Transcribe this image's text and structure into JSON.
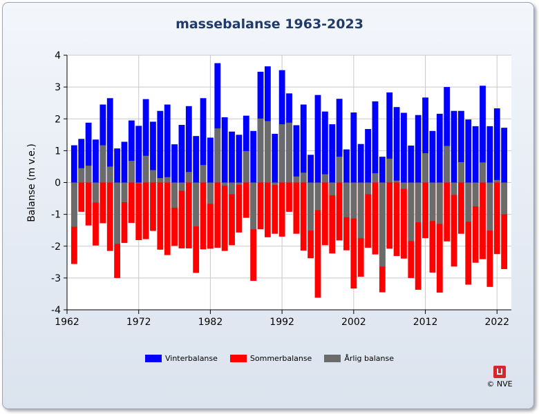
{
  "chart_data": {
    "type": "bar",
    "title": "massebalanse 1963-2023",
    "xlabel": "",
    "ylabel": "Balanse (m v.e.)",
    "ylim": [
      -4,
      4
    ],
    "yticks": [
      -4,
      -3,
      -2,
      -1,
      0,
      1,
      2,
      3,
      4
    ],
    "xlim": [
      1962,
      2024
    ],
    "xticks": [
      1962,
      1972,
      1982,
      1992,
      2002,
      2012,
      2022
    ],
    "grid": true,
    "legend_position": "bottom",
    "x": [
      1963,
      1964,
      1965,
      1966,
      1967,
      1968,
      1969,
      1970,
      1971,
      1972,
      1973,
      1974,
      1975,
      1976,
      1977,
      1978,
      1979,
      1980,
      1981,
      1982,
      1983,
      1984,
      1985,
      1986,
      1987,
      1988,
      1989,
      1990,
      1991,
      1992,
      1993,
      1994,
      1995,
      1996,
      1997,
      1998,
      1999,
      2000,
      2001,
      2002,
      2003,
      2004,
      2005,
      2006,
      2007,
      2008,
      2009,
      2010,
      2011,
      2012,
      2013,
      2014,
      2015,
      2016,
      2017,
      2018,
      2019,
      2020,
      2021,
      2022,
      2023
    ],
    "series": [
      {
        "name": "Vinterbalanse",
        "color": "#0000ff",
        "values": [
          1.17,
          1.37,
          1.88,
          1.35,
          2.45,
          2.65,
          1.07,
          1.28,
          1.95,
          1.78,
          2.62,
          1.91,
          2.25,
          2.45,
          1.2,
          1.81,
          2.4,
          1.46,
          2.65,
          1.41,
          3.75,
          2.05,
          1.6,
          1.5,
          2.1,
          1.62,
          3.48,
          3.65,
          1.53,
          3.53,
          2.8,
          1.8,
          2.45,
          0.87,
          2.75,
          2.23,
          1.83,
          2.63,
          1.04,
          2.2,
          1.21,
          1.68,
          2.55,
          0.81,
          2.83,
          2.37,
          2.19,
          1.16,
          2.12,
          2.67,
          1.62,
          2.16,
          3.0,
          2.25,
          2.25,
          1.98,
          1.77,
          3.04,
          1.77,
          2.33,
          1.72
        ]
      },
      {
        "name": "Sommerbalanse",
        "color": "#ff0000",
        "values": [
          -2.56,
          -0.92,
          -1.35,
          -1.98,
          -1.28,
          -2.15,
          -3.0,
          -1.9,
          -1.27,
          -1.81,
          -1.78,
          -1.52,
          -2.11,
          -2.28,
          -1.99,
          -2.07,
          -2.07,
          -2.84,
          -2.1,
          -2.08,
          -2.05,
          -2.15,
          -1.97,
          -1.57,
          -1.11,
          -3.09,
          -1.47,
          -1.72,
          -1.61,
          -1.7,
          -0.92,
          -1.61,
          -2.14,
          -2.38,
          -3.62,
          -1.97,
          -2.23,
          -1.82,
          -2.13,
          -3.33,
          -2.96,
          -2.05,
          -2.26,
          -3.45,
          -2.08,
          -2.31,
          -2.39,
          -3.0,
          -3.37,
          -1.75,
          -2.83,
          -3.46,
          -1.85,
          -2.64,
          -1.61,
          -3.21,
          -2.52,
          -2.41,
          -3.28,
          -2.25,
          -2.72
        ]
      },
      {
        "name": "Årlig balanse",
        "color": "#6b6b6b",
        "values": [
          -1.39,
          0.45,
          0.53,
          -0.63,
          1.17,
          0.5,
          -1.93,
          -0.62,
          0.68,
          -0.03,
          0.84,
          0.39,
          0.14,
          0.17,
          -0.79,
          -0.26,
          0.33,
          -1.38,
          0.55,
          -0.67,
          1.7,
          -0.1,
          -0.37,
          -0.07,
          0.99,
          -1.47,
          2.01,
          1.93,
          -0.08,
          1.83,
          1.88,
          0.19,
          0.31,
          -1.51,
          -0.87,
          0.26,
          -0.4,
          0.81,
          -1.09,
          -1.13,
          -1.75,
          -0.37,
          0.29,
          -2.64,
          0.75,
          0.06,
          -0.2,
          -1.84,
          -1.25,
          0.92,
          -1.21,
          -1.3,
          1.15,
          -0.39,
          0.64,
          -1.23,
          -0.75,
          0.63,
          -1.51,
          0.08,
          -1.0
        ]
      }
    ]
  },
  "legend": {
    "items": [
      {
        "label": "Vinterbalanse",
        "color": "#0000ff"
      },
      {
        "label": "Sommerbalanse",
        "color": "#ff0000"
      },
      {
        "label": "Årlig balanse",
        "color": "#6b6b6b"
      }
    ]
  },
  "logo": {
    "text": "© NVE",
    "icon": "nve-logo-icon"
  }
}
